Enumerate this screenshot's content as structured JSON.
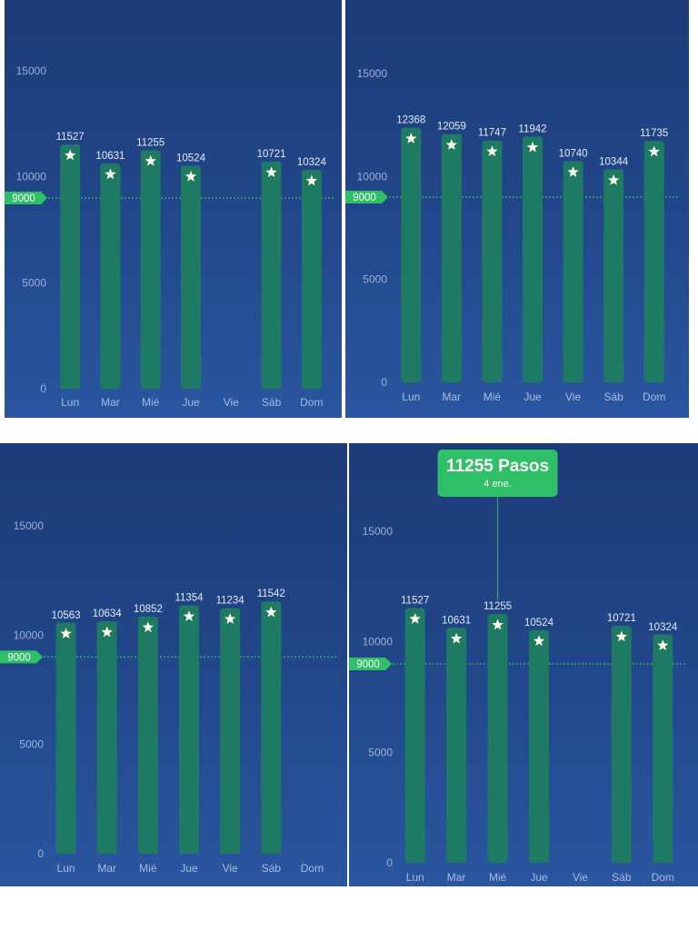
{
  "colors": {
    "background_top": "#1c3b78",
    "background_bottom": "#2a56a0",
    "bar": "#1f7a63",
    "goal": "#2fbf67",
    "star": "#fbfbe6"
  },
  "icons": {
    "bar_marker": "star-icon"
  },
  "chart_data": [
    {
      "type": "bar",
      "categories": [
        "Lun",
        "Mar",
        "Mié",
        "Jue",
        "Vie",
        "Sáb",
        "Dom"
      ],
      "values": [
        11527,
        10631,
        11255,
        10524,
        null,
        10721,
        10324
      ],
      "yticks": [
        "15000",
        "10000",
        "5000",
        "0"
      ],
      "ylim": [
        0,
        15000
      ],
      "goal": {
        "value": 9000,
        "label": "9000"
      },
      "grid": false
    },
    {
      "type": "bar",
      "categories": [
        "Lun",
        "Mar",
        "Mié",
        "Jue",
        "Vie",
        "Sáb",
        "Dom"
      ],
      "values": [
        12368,
        12059,
        11747,
        11942,
        10740,
        10344,
        11735
      ],
      "yticks": [
        "15000",
        "10000",
        "5000",
        "0"
      ],
      "ylim": [
        0,
        15000
      ],
      "goal": {
        "value": 9000,
        "label": "9000"
      },
      "grid": false
    },
    {
      "type": "bar",
      "categories": [
        "Lun",
        "Mar",
        "Mié",
        "Jue",
        "Vie",
        "Sáb",
        "Dom"
      ],
      "values": [
        10563,
        10634,
        10852,
        11354,
        11234,
        11542,
        null
      ],
      "yticks": [
        "15000",
        "10000",
        "5000",
        "0"
      ],
      "ylim": [
        0,
        15000
      ],
      "goal": {
        "value": 9000,
        "label": "9000"
      },
      "grid": false
    },
    {
      "type": "bar",
      "categories": [
        "Lun",
        "Mar",
        "Mié",
        "Jue",
        "Vie",
        "Sáb",
        "Dom"
      ],
      "values": [
        11527,
        10631,
        11255,
        10524,
        null,
        10721,
        10324
      ],
      "yticks": [
        "15000",
        "10000",
        "5000",
        "0"
      ],
      "ylim": [
        0,
        15000
      ],
      "goal": {
        "value": 9000,
        "label": "9000"
      },
      "grid": false,
      "tooltip": {
        "category": "Mié",
        "title": "11255 Pasos",
        "subtitle": "4 ene."
      }
    }
  ]
}
